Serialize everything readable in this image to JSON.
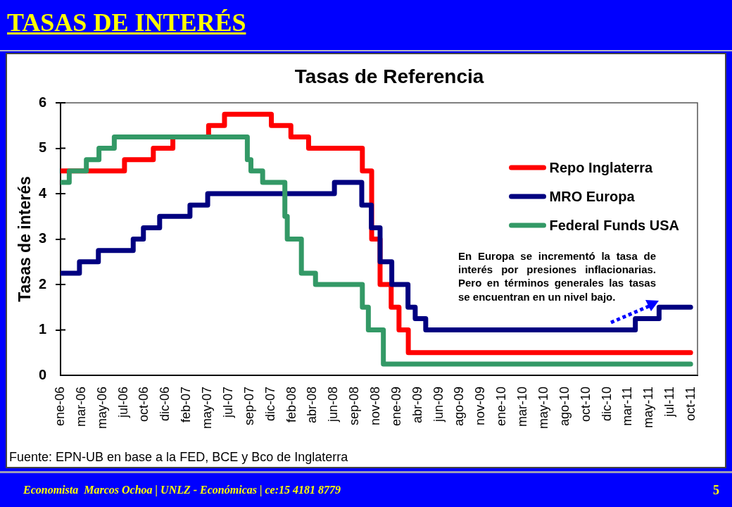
{
  "chart_data": {
    "type": "step",
    "title": "TASAS DE INTERÉS",
    "subtitle": "Tasas de Referencia",
    "ylabel": "Tasas de interés",
    "xlim": [
      "2006-01-01",
      "2011-10-23"
    ],
    "xticks": [
      {
        "value": "2006-01-01",
        "label": "ene-06"
      },
      {
        "value": "2006-03-12",
        "label": "mar-06"
      },
      {
        "value": "2006-05-21",
        "label": "may-06"
      },
      {
        "value": "2006-07-30",
        "label": "jul-06"
      },
      {
        "value": "2006-10-08",
        "label": "oct-06"
      },
      {
        "value": "2006-12-17",
        "label": "dic-06"
      },
      {
        "value": "2007-02-25",
        "label": "feb-07"
      },
      {
        "value": "2007-05-06",
        "label": "may-07"
      },
      {
        "value": "2007-07-15",
        "label": "jul-07"
      },
      {
        "value": "2007-09-23",
        "label": "sep-07"
      },
      {
        "value": "2007-12-02",
        "label": "dic-07"
      },
      {
        "value": "2008-02-10",
        "label": "feb-08"
      },
      {
        "value": "2008-04-20",
        "label": "abr-08"
      },
      {
        "value": "2008-06-29",
        "label": "jun-08"
      },
      {
        "value": "2008-09-07",
        "label": "sep-08"
      },
      {
        "value": "2008-11-16",
        "label": "nov-08"
      },
      {
        "value": "2009-01-25",
        "label": "ene-09"
      },
      {
        "value": "2009-04-05",
        "label": "abr-09"
      },
      {
        "value": "2009-06-14",
        "label": "jun-09"
      },
      {
        "value": "2009-08-23",
        "label": "ago-09"
      },
      {
        "value": "2009-11-01",
        "label": "nov-09"
      },
      {
        "value": "2010-01-10",
        "label": "ene-10"
      },
      {
        "value": "2010-03-21",
        "label": "mar-10"
      },
      {
        "value": "2010-05-30",
        "label": "may-10"
      },
      {
        "value": "2010-08-08",
        "label": "ago-10"
      },
      {
        "value": "2010-10-17",
        "label": "oct-10"
      },
      {
        "value": "2010-12-26",
        "label": "dic-10"
      },
      {
        "value": "2011-03-06",
        "label": "mar-11"
      },
      {
        "value": "2011-05-15",
        "label": "may-11"
      },
      {
        "value": "2011-07-24",
        "label": "jul-11"
      },
      {
        "value": "2011-10-02",
        "label": "oct-11"
      }
    ],
    "ylim": [
      0,
      6
    ],
    "yticks": [
      0,
      1,
      2,
      3,
      4,
      5,
      6
    ],
    "grid": false,
    "legend": "top right",
    "series": [
      {
        "name": "Repo Inglaterra",
        "color": "#ff0000",
        "x": [
          "2006-01-01",
          "2006-08-02",
          "2006-11-06",
          "2007-01-10",
          "2007-05-09",
          "2007-07-01",
          "2007-12-04",
          "2008-02-07",
          "2008-04-06",
          "2008-10-02",
          "2008-11-02",
          "2008-11-30",
          "2009-01-06",
          "2009-02-01",
          "2009-03-04",
          "2011-09-30"
        ],
        "values": [
          4.5,
          4.75,
          5.0,
          5.25,
          5.5,
          5.75,
          5.5,
          5.25,
          5.0,
          4.5,
          3.0,
          2.0,
          1.5,
          1.0,
          0.5,
          0.5
        ]
      },
      {
        "name": "MRO Europa",
        "color": "#000080",
        "x": [
          "2006-01-01",
          "2006-03-05",
          "2006-05-07",
          "2006-08-31",
          "2006-10-04",
          "2006-11-27",
          "2007-03-08",
          "2007-05-06",
          "2008-07-01",
          "2008-09-30",
          "2008-11-01",
          "2008-11-30",
          "2009-01-08",
          "2009-03-03",
          "2009-03-27",
          "2009-05-01",
          "2011-03-30",
          "2011-06-17",
          "2011-09-30"
        ],
        "values": [
          2.25,
          2.5,
          2.75,
          3.0,
          3.25,
          3.5,
          3.75,
          4.0,
          4.25,
          3.75,
          3.25,
          2.5,
          2.0,
          1.5,
          1.25,
          1.0,
          1.25,
          1.5,
          1.5
        ]
      },
      {
        "name": "Federal Funds USA",
        "color": "#339966",
        "x": [
          "2006-01-01",
          "2006-01-30",
          "2006-03-28",
          "2006-05-09",
          "2006-06-29",
          "2007-09-15",
          "2007-09-27",
          "2007-11-05",
          "2008-01-18",
          "2008-01-26",
          "2008-03-13",
          "2008-04-29",
          "2008-10-02",
          "2008-10-22",
          "2008-12-11",
          "2011-09-30"
        ],
        "values": [
          4.25,
          4.5,
          4.75,
          5.0,
          5.25,
          4.75,
          4.5,
          4.25,
          3.5,
          3.0,
          2.25,
          2.0,
          1.5,
          1.0,
          0.25,
          0.25
        ]
      }
    ],
    "annotations": [
      "En Europa se incrementó la tasa de interés por presiones inflacionarias. Pero en términos generales las tasas se encuentran en un nivel bajo.",
      "Fuente: EPN-UB en base a la FED, BCE y Bco de Inglaterra",
      "Economista  Marcos Ochoa | UNLZ - Económicas | ce:15 4181 8779",
      "5"
    ]
  }
}
